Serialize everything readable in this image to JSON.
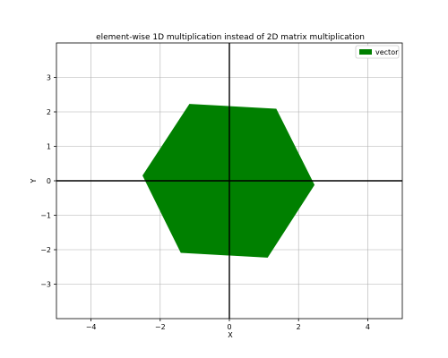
{
  "chart_data": {
    "type": "area",
    "title": "element-wise 1D multiplication instead of 2D matrix multiplication",
    "xlabel": "X",
    "ylabel": "Y",
    "xlim": [
      -5,
      5
    ],
    "ylim": [
      -4,
      4
    ],
    "xticks": [
      -4,
      -2,
      0,
      2,
      4
    ],
    "yticks": [
      -3,
      -2,
      -1,
      0,
      1,
      2,
      3
    ],
    "xtick_labels": [
      "−4",
      "−2",
      "0",
      "2",
      "4"
    ],
    "ytick_labels": [
      "−3",
      "−2",
      "−1",
      "0",
      "1",
      "2",
      "3"
    ],
    "grid": true,
    "legend_placement": "top-right",
    "series": [
      {
        "name": "vector",
        "color": "#008000",
        "x": [
          -1.15,
          1.35,
          2.45,
          1.1,
          -1.4,
          -2.5
        ],
        "y": [
          2.22,
          2.08,
          -0.12,
          -2.22,
          -2.08,
          0.15
        ]
      }
    ]
  }
}
